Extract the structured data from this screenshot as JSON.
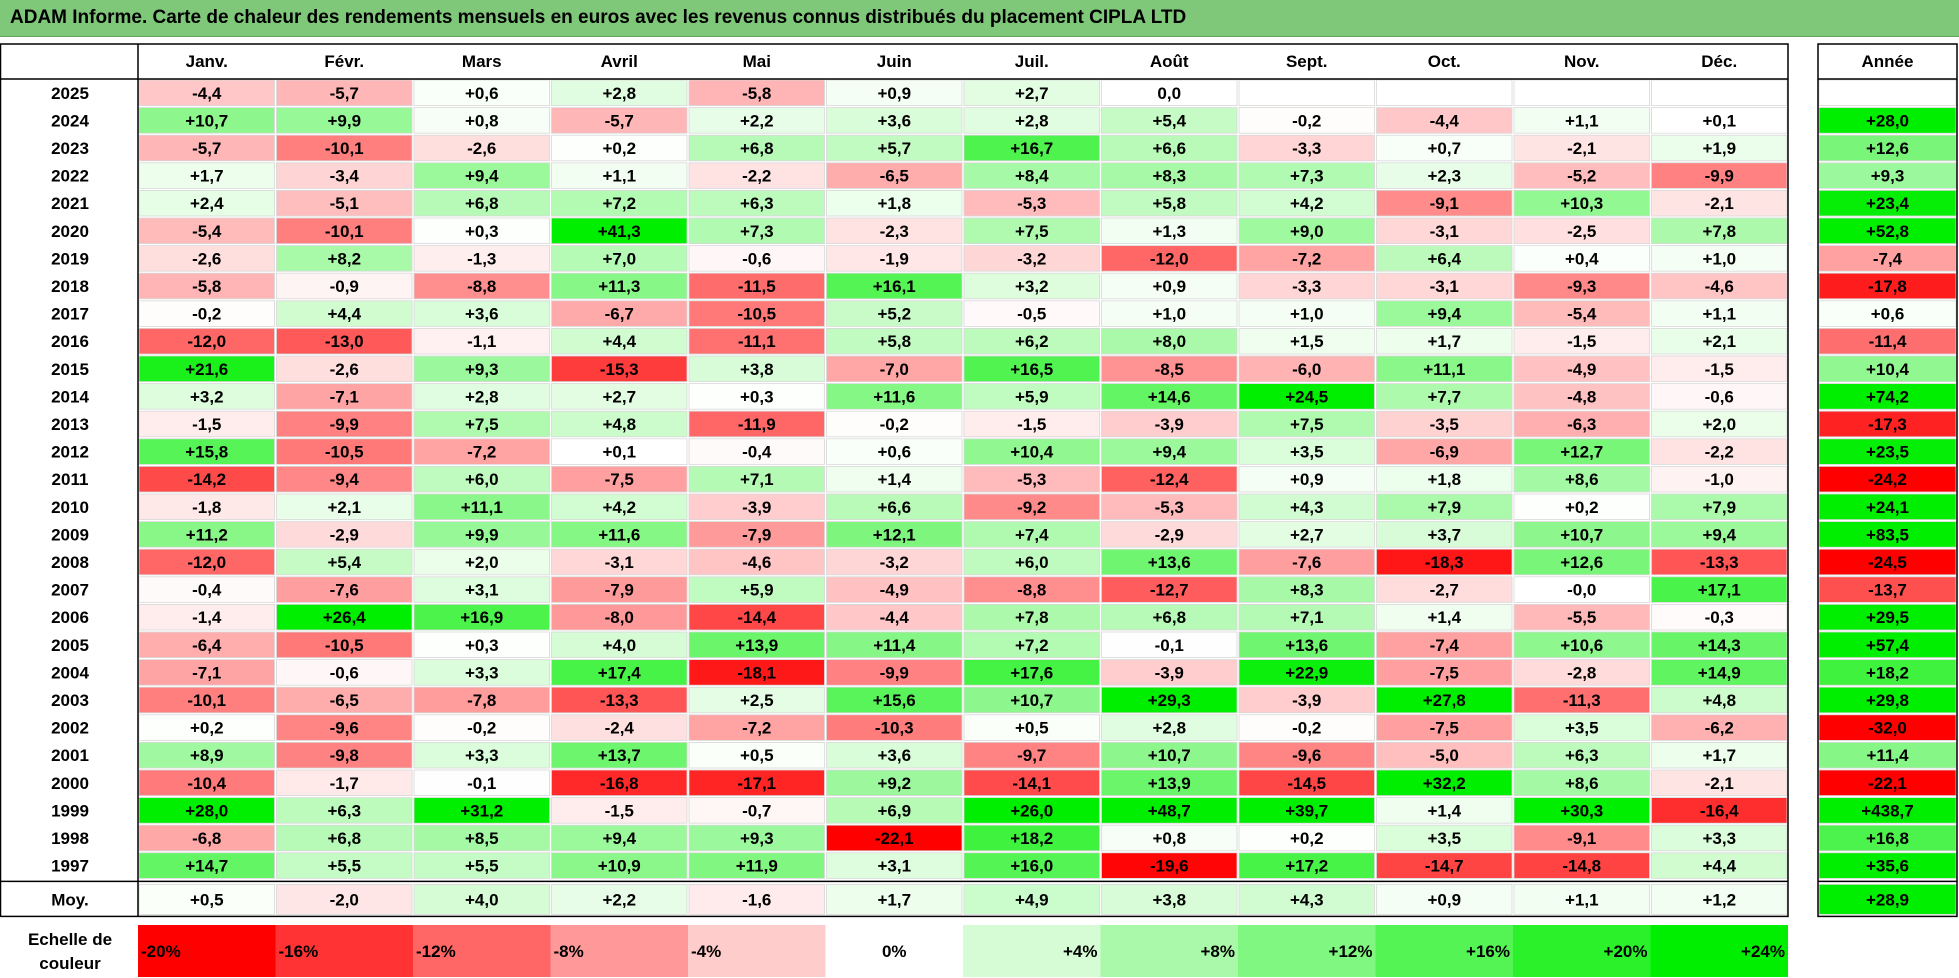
{
  "title": "ADAM Informe. Carte de chaleur des rendements mensuels en euros avec les revenus connus distribués du placement CIPLA LTD",
  "chart_data": {
    "type": "heatmap",
    "months": [
      "Janv.",
      "Févr.",
      "Mars",
      "Avril",
      "Mai",
      "Juin",
      "Juil.",
      "Août",
      "Sept.",
      "Oct.",
      "Nov.",
      "Déc."
    ],
    "annual_header": "Année",
    "avg_label": "Moy.",
    "rows": [
      {
        "year": "2025",
        "values": [
          "-4,4",
          "-5,7",
          "+0,6",
          "+2,8",
          "-5,8",
          "+0,9",
          "+2,7",
          "0,0",
          "",
          "",
          "",
          ""
        ],
        "annual": ""
      },
      {
        "year": "2024",
        "values": [
          "+10,7",
          "+9,9",
          "+0,8",
          "-5,7",
          "+2,2",
          "+3,6",
          "+2,8",
          "+5,4",
          "-0,2",
          "-4,4",
          "+1,1",
          "+0,1"
        ],
        "annual": "+28,0"
      },
      {
        "year": "2023",
        "values": [
          "-5,7",
          "-10,1",
          "-2,6",
          "+0,2",
          "+6,8",
          "+5,7",
          "+16,7",
          "+6,6",
          "-3,3",
          "+0,7",
          "-2,1",
          "+1,9"
        ],
        "annual": "+12,6"
      },
      {
        "year": "2022",
        "values": [
          "+1,7",
          "-3,4",
          "+9,4",
          "+1,1",
          "-2,2",
          "-6,5",
          "+8,4",
          "+8,3",
          "+7,3",
          "+2,3",
          "-5,2",
          "-9,9"
        ],
        "annual": "+9,3"
      },
      {
        "year": "2021",
        "values": [
          "+2,4",
          "-5,1",
          "+6,8",
          "+7,2",
          "+6,3",
          "+1,8",
          "-5,3",
          "+5,8",
          "+4,2",
          "-9,1",
          "+10,3",
          "-2,1"
        ],
        "annual": "+23,4"
      },
      {
        "year": "2020",
        "values": [
          "-5,4",
          "-10,1",
          "+0,3",
          "+41,3",
          "+7,3",
          "-2,3",
          "+7,5",
          "+1,3",
          "+9,0",
          "-3,1",
          "-2,5",
          "+7,8"
        ],
        "annual": "+52,8"
      },
      {
        "year": "2019",
        "values": [
          "-2,6",
          "+8,2",
          "-1,3",
          "+7,0",
          "-0,6",
          "-1,9",
          "-3,2",
          "-12,0",
          "-7,2",
          "+6,4",
          "+0,4",
          "+1,0"
        ],
        "annual": "-7,4"
      },
      {
        "year": "2018",
        "values": [
          "-5,8",
          "-0,9",
          "-8,8",
          "+11,3",
          "-11,5",
          "+16,1",
          "+3,2",
          "+0,9",
          "-3,3",
          "-3,1",
          "-9,3",
          "-4,6"
        ],
        "annual": "-17,8"
      },
      {
        "year": "2017",
        "values": [
          "-0,2",
          "+4,4",
          "+3,6",
          "-6,7",
          "-10,5",
          "+5,2",
          "-0,5",
          "+1,0",
          "+1,0",
          "+9,4",
          "-5,4",
          "+1,1"
        ],
        "annual": "+0,6"
      },
      {
        "year": "2016",
        "values": [
          "-12,0",
          "-13,0",
          "-1,1",
          "+4,4",
          "-11,1",
          "+5,8",
          "+6,2",
          "+8,0",
          "+1,5",
          "+1,7",
          "-1,5",
          "+2,1"
        ],
        "annual": "-11,4"
      },
      {
        "year": "2015",
        "values": [
          "+21,6",
          "-2,6",
          "+9,3",
          "-15,3",
          "+3,8",
          "-7,0",
          "+16,5",
          "-8,5",
          "-6,0",
          "+11,1",
          "-4,9",
          "-1,5"
        ],
        "annual": "+10,4"
      },
      {
        "year": "2014",
        "values": [
          "+3,2",
          "-7,1",
          "+2,8",
          "+2,7",
          "+0,3",
          "+11,6",
          "+5,9",
          "+14,6",
          "+24,5",
          "+7,7",
          "-4,8",
          "-0,6"
        ],
        "annual": "+74,2"
      },
      {
        "year": "2013",
        "values": [
          "-1,5",
          "-9,9",
          "+7,5",
          "+4,8",
          "-11,9",
          "-0,2",
          "-1,5",
          "-3,9",
          "+7,5",
          "-3,5",
          "-6,3",
          "+2,0"
        ],
        "annual": "-17,3"
      },
      {
        "year": "2012",
        "values": [
          "+15,8",
          "-10,5",
          "-7,2",
          "+0,1",
          "-0,4",
          "+0,6",
          "+10,4",
          "+9,4",
          "+3,5",
          "-6,9",
          "+12,7",
          "-2,2"
        ],
        "annual": "+23,5"
      },
      {
        "year": "2011",
        "values": [
          "-14,2",
          "-9,4",
          "+6,0",
          "-7,5",
          "+7,1",
          "+1,4",
          "-5,3",
          "-12,4",
          "+0,9",
          "+1,8",
          "+8,6",
          "-1,0"
        ],
        "annual": "-24,2"
      },
      {
        "year": "2010",
        "values": [
          "-1,8",
          "+2,1",
          "+11,1",
          "+4,2",
          "-3,9",
          "+6,6",
          "-9,2",
          "-5,3",
          "+4,3",
          "+7,9",
          "+0,2",
          "+7,9"
        ],
        "annual": "+24,1"
      },
      {
        "year": "2009",
        "values": [
          "+11,2",
          "-2,9",
          "+9,9",
          "+11,6",
          "-7,9",
          "+12,1",
          "+7,4",
          "-2,9",
          "+2,7",
          "+3,7",
          "+10,7",
          "+9,4"
        ],
        "annual": "+83,5"
      },
      {
        "year": "2008",
        "values": [
          "-12,0",
          "+5,4",
          "+2,0",
          "-3,1",
          "-4,6",
          "-3,2",
          "+6,0",
          "+13,6",
          "-7,6",
          "-18,3",
          "+12,6",
          "-13,3"
        ],
        "annual": "-24,5"
      },
      {
        "year": "2007",
        "values": [
          "-0,4",
          "-7,6",
          "+3,1",
          "-7,9",
          "+5,9",
          "-4,9",
          "-8,8",
          "-12,7",
          "+8,3",
          "-2,7",
          "-0,0",
          "+17,1"
        ],
        "annual": "-13,7"
      },
      {
        "year": "2006",
        "values": [
          "-1,4",
          "+26,4",
          "+16,9",
          "-8,0",
          "-14,4",
          "-4,4",
          "+7,8",
          "+6,8",
          "+7,1",
          "+1,4",
          "-5,5",
          "-0,3"
        ],
        "annual": "+29,5"
      },
      {
        "year": "2005",
        "values": [
          "-6,4",
          "-10,5",
          "+0,3",
          "+4,0",
          "+13,9",
          "+11,4",
          "+7,2",
          "-0,1",
          "+13,6",
          "-7,4",
          "+10,6",
          "+14,3"
        ],
        "annual": "+57,4"
      },
      {
        "year": "2004",
        "values": [
          "-7,1",
          "-0,6",
          "+3,3",
          "+17,4",
          "-18,1",
          "-9,9",
          "+17,6",
          "-3,9",
          "+22,9",
          "-7,5",
          "-2,8",
          "+14,9"
        ],
        "annual": "+18,2"
      },
      {
        "year": "2003",
        "values": [
          "-10,1",
          "-6,5",
          "-7,8",
          "-13,3",
          "+2,5",
          "+15,6",
          "+10,7",
          "+29,3",
          "-3,9",
          "+27,8",
          "-11,3",
          "+4,8"
        ],
        "annual": "+29,8"
      },
      {
        "year": "2002",
        "values": [
          "+0,2",
          "-9,6",
          "-0,2",
          "-2,4",
          "-7,2",
          "-10,3",
          "+0,5",
          "+2,8",
          "-0,2",
          "-7,5",
          "+3,5",
          "-6,2"
        ],
        "annual": "-32,0"
      },
      {
        "year": "2001",
        "values": [
          "+8,9",
          "-9,8",
          "+3,3",
          "+13,7",
          "+0,5",
          "+3,6",
          "-9,7",
          "+10,7",
          "-9,6",
          "-5,0",
          "+6,3",
          "+1,7"
        ],
        "annual": "+11,4"
      },
      {
        "year": "2000",
        "values": [
          "-10,4",
          "-1,7",
          "-0,1",
          "-16,8",
          "-17,1",
          "+9,2",
          "-14,1",
          "+13,9",
          "-14,5",
          "+32,2",
          "+8,6",
          "-2,1"
        ],
        "annual": "-22,1"
      },
      {
        "year": "1999",
        "values": [
          "+28,0",
          "+6,3",
          "+31,2",
          "-1,5",
          "-0,7",
          "+6,9",
          "+26,0",
          "+48,7",
          "+39,7",
          "+1,4",
          "+30,3",
          "-16,4"
        ],
        "annual": "+438,7"
      },
      {
        "year": "1998",
        "values": [
          "-6,8",
          "+6,8",
          "+8,5",
          "+9,4",
          "+9,3",
          "-22,1",
          "+18,2",
          "+0,8",
          "+0,2",
          "+3,5",
          "-9,1",
          "+3,3"
        ],
        "annual": "+16,8"
      },
      {
        "year": "1997",
        "values": [
          "+14,7",
          "+5,5",
          "+5,5",
          "+10,9",
          "+11,9",
          "+3,1",
          "+16,0",
          "-19,6",
          "+17,2",
          "-14,7",
          "-14,8",
          "+4,4"
        ],
        "annual": "+35,6"
      }
    ],
    "average": {
      "values": [
        "+0,5",
        "-2,0",
        "+4,0",
        "+2,2",
        "-1,6",
        "+1,7",
        "+4,9",
        "+3,8",
        "+4,3",
        "+0,9",
        "+1,1",
        "+1,2"
      ],
      "annual": "+28,9"
    },
    "scale_label": "Echelle de couleur",
    "scale": [
      "-20%",
      "-16%",
      "-12%",
      "-8%",
      "-4%",
      "0%",
      "+4%",
      "+8%",
      "+12%",
      "+16%",
      "+20%",
      "+24%"
    ],
    "colors": {
      "negative_max": "#ff0000",
      "neutral": "#ffffff",
      "positive_max": "#00ee00",
      "title_bar": "#7fc87a"
    }
  }
}
